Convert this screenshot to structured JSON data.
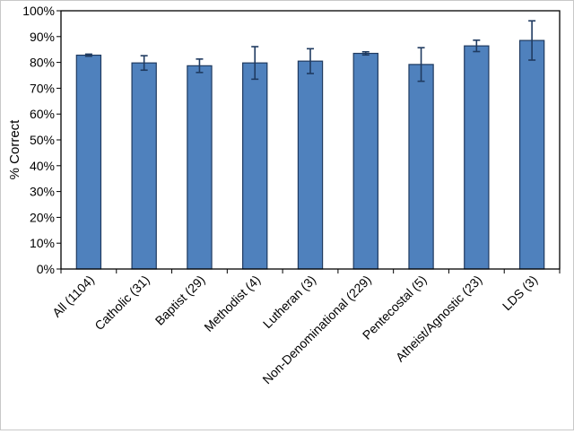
{
  "chart_data": {
    "type": "bar",
    "title": "",
    "xlabel": "",
    "ylabel": "% Correct",
    "ylim": [
      0,
      100
    ],
    "yticks": [
      "0%",
      "10%",
      "20%",
      "30%",
      "40%",
      "50%",
      "60%",
      "70%",
      "80%",
      "90%",
      "100%"
    ],
    "ytick_values": [
      0,
      10,
      20,
      30,
      40,
      50,
      60,
      70,
      80,
      90,
      100
    ],
    "categories": [
      "All (1104)",
      "Catholic (31)",
      "Baptist (29)",
      "Methodist (4)",
      "Lutheran (3)",
      "Non-Denominational (229)",
      "Pentecostal (5)",
      "Atheist/Agnostic (23)",
      "LDS (3)"
    ],
    "values": [
      82.8,
      79.8,
      78.7,
      79.8,
      80.5,
      83.5,
      79.2,
      86.4,
      88.5
    ],
    "error": [
      0.4,
      2.8,
      2.6,
      6.3,
      4.8,
      0.6,
      6.5,
      2.2,
      7.6
    ],
    "bar_color": "#4f81bd",
    "bar_edge_color": "#1f3a60",
    "grid": false,
    "legend": "none"
  }
}
